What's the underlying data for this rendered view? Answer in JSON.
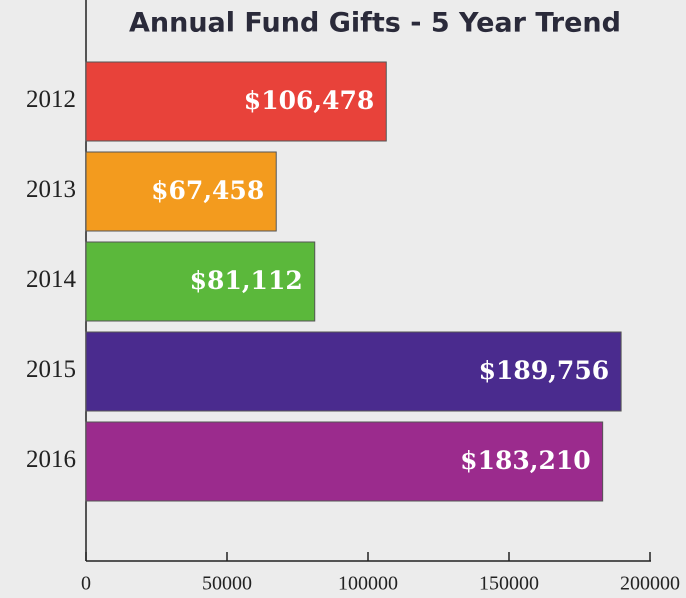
{
  "chart_data": {
    "type": "barh",
    "title": "Annual Fund Gifts - 5 Year Trend",
    "categories": [
      "2012",
      "2013",
      "2014",
      "2015",
      "2016"
    ],
    "values": [
      106478,
      67458,
      81112,
      189756,
      183210
    ],
    "value_labels": [
      "$106,478",
      "$67,458",
      "$81,112",
      "$189,756",
      "$183,210"
    ],
    "colors": [
      "#e8423a",
      "#f39b1e",
      "#5bb83b",
      "#4a2b8e",
      "#9b2b8d"
    ],
    "xlim": [
      0,
      200000
    ],
    "xticks": [
      0,
      50000,
      100000,
      150000,
      200000
    ]
  }
}
